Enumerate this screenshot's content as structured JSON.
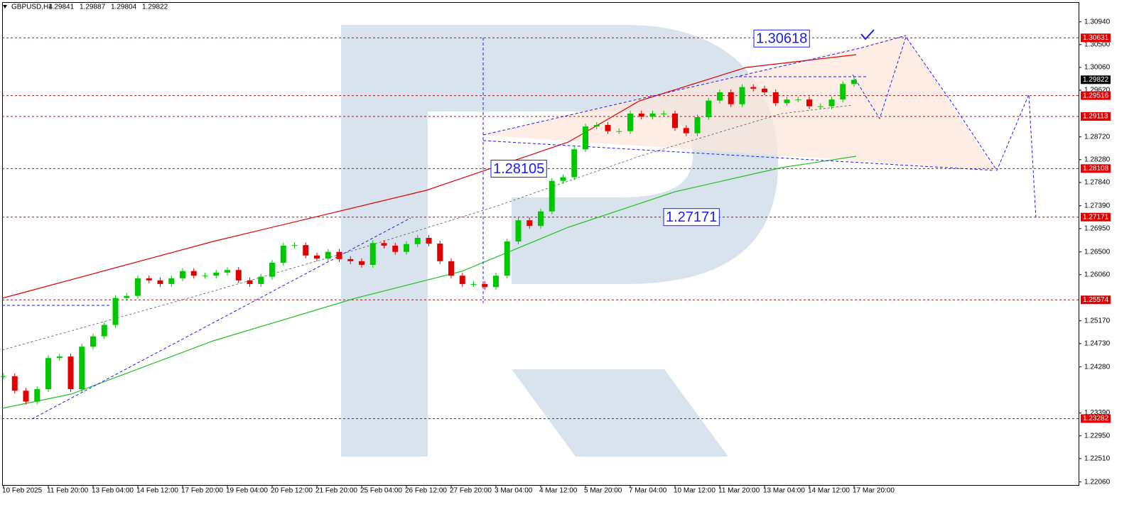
{
  "chart_data": {
    "type": "candlestick",
    "symbol": "GBPUSD,H4",
    "ohlc": [
      1.29841,
      1.29887,
      1.29804,
      1.29822
    ],
    "categories": [
      "10 Feb 2025",
      null,
      null,
      null,
      "11 Feb 20:00",
      null,
      null,
      null,
      "13 Feb 04:00",
      null,
      null,
      null,
      "14 Feb 12:00",
      null,
      null,
      null,
      "17 Feb 20:00",
      null,
      null,
      null,
      "19 Feb 04:00",
      null,
      null,
      null,
      "20 Feb 12:00",
      null,
      null,
      null,
      "21 Feb 20:00",
      null,
      null,
      null,
      "25 Feb 04:00",
      null,
      null,
      null,
      "26 Feb 12:00",
      null,
      null,
      null,
      "27 Feb 20:00",
      null,
      null,
      null,
      "3 Mar 04:00",
      null,
      null,
      null,
      "4 Mar 12:00",
      null,
      null,
      null,
      "5 Mar 20:00",
      null,
      null,
      null,
      "7 Mar 04:00",
      null,
      null,
      null,
      "10 Mar 12:00",
      null,
      null,
      null,
      "11 Mar 20:00",
      null,
      null,
      null,
      "13 Mar 04:00",
      null,
      null,
      null,
      "14 Mar 12:00",
      null,
      null,
      null,
      "17 Mar 20:00"
    ],
    "close": [
      1.241,
      1.2382,
      1.2361,
      1.2385,
      1.2445,
      1.2448,
      1.2385,
      1.2467,
      1.2487,
      1.2509,
      1.2561,
      1.2565,
      1.2599,
      1.2595,
      1.2588,
      1.2599,
      1.2613,
      1.2604,
      1.2604,
      1.261,
      1.2615,
      1.2595,
      1.2588,
      1.2602,
      1.2629,
      1.2662,
      1.2663,
      1.2643,
      1.2637,
      1.265,
      1.2636,
      1.2632,
      1.2625,
      1.2667,
      1.2662,
      1.265,
      1.2665,
      1.2677,
      1.2666,
      1.2632,
      1.2604,
      1.2588,
      1.2588,
      1.2582,
      1.2604,
      1.267,
      1.2711,
      1.27,
      1.2728,
      1.2787,
      1.2794,
      1.2848,
      1.2892,
      1.2895,
      1.2883,
      1.2883,
      1.2917,
      1.2911,
      1.2917,
      1.2917,
      1.2889,
      1.2879,
      1.291,
      1.2942,
      1.2958,
      1.2935,
      1.2968,
      1.2965,
      1.2958,
      1.2937,
      1.2944,
      1.2944,
      1.2931,
      1.2931,
      1.2944,
      1.2974,
      1.2982
    ],
    "up_color": "#00c800",
    "down_color": "#e00000",
    "ylim": [
      1.22,
      1.3132
    ],
    "yticks": [
      {
        "value": 1.3094,
        "label": "1.30940"
      },
      {
        "value": 1.305,
        "label": "1.30500"
      },
      {
        "value": 1.3006,
        "label": "1.30060"
      },
      {
        "value": 1.2962,
        "label": "1.29620"
      },
      {
        "value": 1.2872,
        "label": "1.28720"
      },
      {
        "value": 1.2828,
        "label": "1.28280"
      },
      {
        "value": 1.2784,
        "label": "1.27840"
      },
      {
        "value": 1.2739,
        "label": "1.27390"
      },
      {
        "value": 1.2695,
        "label": "1.26950"
      },
      {
        "value": 1.265,
        "label": "1.26500"
      },
      {
        "value": 1.2606,
        "label": "1.26060"
      },
      {
        "value": 1.2517,
        "label": "1.25170"
      },
      {
        "value": 1.2473,
        "label": "1.24730"
      },
      {
        "value": 1.2428,
        "label": "1.24280"
      },
      {
        "value": 1.2339,
        "label": "1.23390"
      },
      {
        "value": 1.2295,
        "label": "1.22950"
      },
      {
        "value": 1.2251,
        "label": "1.22510"
      },
      {
        "value": 1.2206,
        "label": "1.22060"
      }
    ],
    "levels": [
      1.30631,
      1.29516,
      1.29113,
      1.28108,
      1.27171,
      1.25574,
      1.23282
    ],
    "level_color": "#e00000",
    "current_price": 1.29822,
    "annotations": [
      1.30618,
      1.28105,
      1.27171
    ]
  }
}
